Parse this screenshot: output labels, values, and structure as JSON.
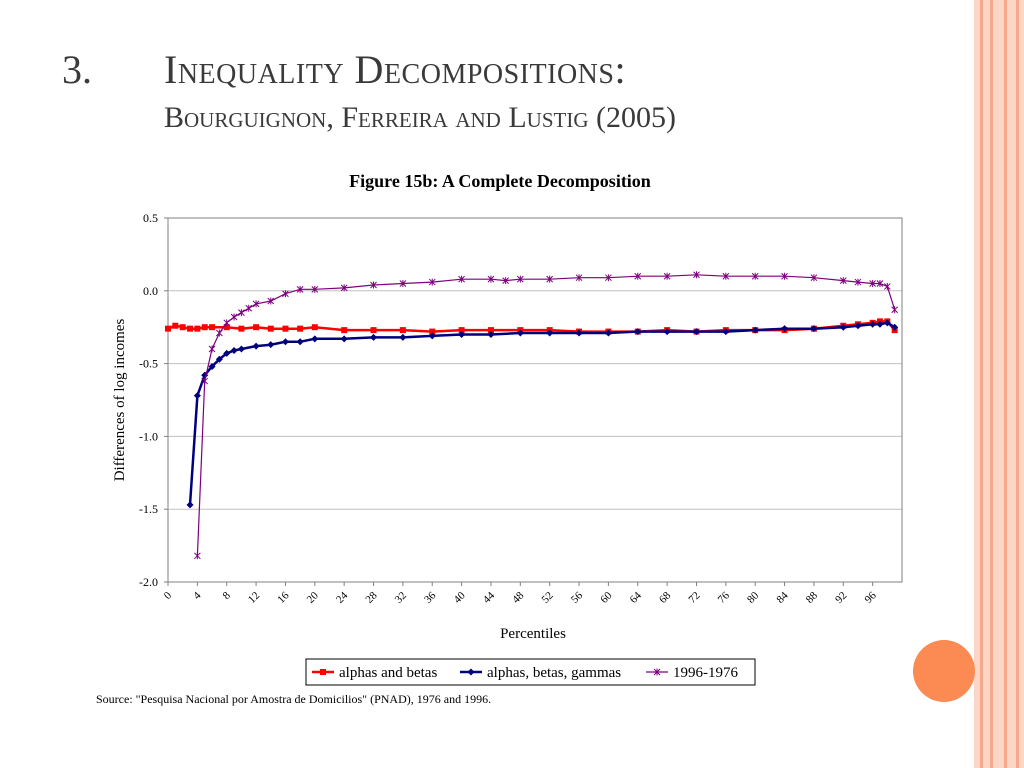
{
  "slide": {
    "number": "3.",
    "title": "Inequality Decompositions:",
    "subtitle": "Bourguignon, Ferreira and Lustig (2005)",
    "source": "Source: \"Pesquisa Nacional por Amostra de Domicilios\" (PNAD), 1976 and 1996.",
    "accent_colors": [
      "#fbd5c5",
      "#f5a98a",
      "#fb8a53"
    ]
  },
  "chart_data": {
    "type": "line",
    "title": "Figure 15b: A Complete Decomposition",
    "xlabel": "Percentiles",
    "ylabel": "Differences of log incomes",
    "xlim": [
      0,
      100
    ],
    "ylim": [
      -2.0,
      0.5
    ],
    "y_ticks": [
      "0.5",
      "0.0",
      "-0.5",
      "-1.0",
      "-1.5",
      "-2.0"
    ],
    "x_ticks": [
      "0",
      "4",
      "8",
      "12",
      "16",
      "20",
      "24",
      "28",
      "32",
      "36",
      "40",
      "44",
      "48",
      "52",
      "56",
      "60",
      "64",
      "68",
      "72",
      "76",
      "80",
      "84",
      "88",
      "92",
      "96"
    ],
    "grid": "horizontal",
    "legend_position": "bottom",
    "series": [
      {
        "name": "alphas and betas",
        "color": "#ff0000",
        "marker": "square",
        "points": [
          [
            0,
            -0.26
          ],
          [
            1,
            -0.24
          ],
          [
            2,
            -0.25
          ],
          [
            3,
            -0.26
          ],
          [
            4,
            -0.26
          ],
          [
            5,
            -0.25
          ],
          [
            6,
            -0.25
          ],
          [
            8,
            -0.25
          ],
          [
            10,
            -0.26
          ],
          [
            12,
            -0.25
          ],
          [
            14,
            -0.26
          ],
          [
            16,
            -0.26
          ],
          [
            18,
            -0.26
          ],
          [
            20,
            -0.25
          ],
          [
            24,
            -0.27
          ],
          [
            28,
            -0.27
          ],
          [
            32,
            -0.27
          ],
          [
            36,
            -0.28
          ],
          [
            40,
            -0.27
          ],
          [
            44,
            -0.27
          ],
          [
            48,
            -0.27
          ],
          [
            52,
            -0.27
          ],
          [
            56,
            -0.28
          ],
          [
            60,
            -0.28
          ],
          [
            64,
            -0.28
          ],
          [
            68,
            -0.27
          ],
          [
            72,
            -0.28
          ],
          [
            76,
            -0.27
          ],
          [
            80,
            -0.27
          ],
          [
            84,
            -0.27
          ],
          [
            88,
            -0.26
          ],
          [
            92,
            -0.24
          ],
          [
            94,
            -0.23
          ],
          [
            96,
            -0.22
          ],
          [
            97,
            -0.21
          ],
          [
            98,
            -0.21
          ],
          [
            99,
            -0.27
          ]
        ]
      },
      {
        "name": "alphas, betas, gammas",
        "color": "#00007f",
        "marker": "diamond",
        "points": [
          [
            3,
            -1.47
          ],
          [
            4,
            -0.72
          ],
          [
            5,
            -0.58
          ],
          [
            6,
            -0.52
          ],
          [
            7,
            -0.47
          ],
          [
            8,
            -0.43
          ],
          [
            9,
            -0.41
          ],
          [
            10,
            -0.4
          ],
          [
            12,
            -0.38
          ],
          [
            14,
            -0.37
          ],
          [
            16,
            -0.35
          ],
          [
            18,
            -0.35
          ],
          [
            20,
            -0.33
          ],
          [
            24,
            -0.33
          ],
          [
            28,
            -0.32
          ],
          [
            32,
            -0.32
          ],
          [
            36,
            -0.31
          ],
          [
            40,
            -0.3
          ],
          [
            44,
            -0.3
          ],
          [
            48,
            -0.29
          ],
          [
            52,
            -0.29
          ],
          [
            56,
            -0.29
          ],
          [
            60,
            -0.29
          ],
          [
            64,
            -0.28
          ],
          [
            68,
            -0.28
          ],
          [
            72,
            -0.28
          ],
          [
            76,
            -0.28
          ],
          [
            80,
            -0.27
          ],
          [
            84,
            -0.26
          ],
          [
            88,
            -0.26
          ],
          [
            92,
            -0.25
          ],
          [
            94,
            -0.24
          ],
          [
            96,
            -0.23
          ],
          [
            97,
            -0.23
          ],
          [
            98,
            -0.22
          ],
          [
            99,
            -0.25
          ]
        ]
      },
      {
        "name": "1996-1976",
        "color": "#7f007f",
        "marker": "x",
        "points": [
          [
            4,
            -1.82
          ],
          [
            5,
            -0.62
          ],
          [
            6,
            -0.4
          ],
          [
            7,
            -0.29
          ],
          [
            8,
            -0.22
          ],
          [
            9,
            -0.18
          ],
          [
            10,
            -0.15
          ],
          [
            11,
            -0.12
          ],
          [
            12,
            -0.09
          ],
          [
            14,
            -0.07
          ],
          [
            16,
            -0.02
          ],
          [
            18,
            0.01
          ],
          [
            20,
            0.01
          ],
          [
            24,
            0.02
          ],
          [
            28,
            0.04
          ],
          [
            32,
            0.05
          ],
          [
            36,
            0.06
          ],
          [
            40,
            0.08
          ],
          [
            44,
            0.08
          ],
          [
            46,
            0.07
          ],
          [
            48,
            0.08
          ],
          [
            52,
            0.08
          ],
          [
            56,
            0.09
          ],
          [
            60,
            0.09
          ],
          [
            64,
            0.1
          ],
          [
            68,
            0.1
          ],
          [
            72,
            0.11
          ],
          [
            76,
            0.1
          ],
          [
            80,
            0.1
          ],
          [
            84,
            0.1
          ],
          [
            88,
            0.09
          ],
          [
            92,
            0.07
          ],
          [
            94,
            0.06
          ],
          [
            96,
            0.05
          ],
          [
            97,
            0.05
          ],
          [
            98,
            0.03
          ],
          [
            99,
            -0.13
          ]
        ]
      }
    ]
  }
}
